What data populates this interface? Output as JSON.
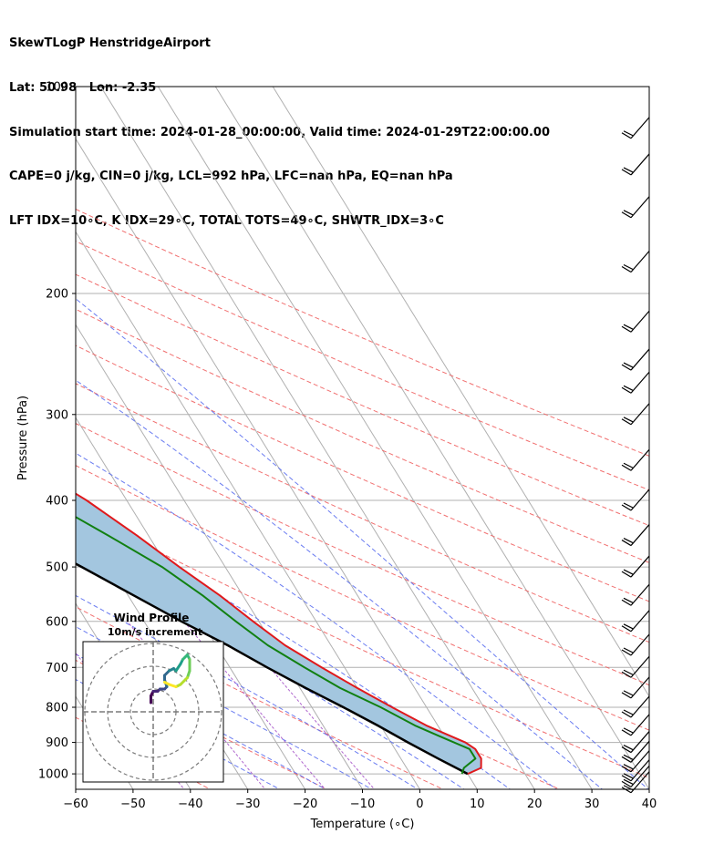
{
  "header": {
    "line1": "SkewTLogP HenstridgeAirport",
    "line2": "Lat: 50.98   Lon: -2.35",
    "line3": "Simulation start time: 2024-01-28_00:00:00, Valid time: 2024-01-29T22:00:00.00",
    "line4": "CAPE=0 j/kg, CIN=0 j/kg, LCL=992 hPa, LFC=nan hPa, EQ=nan hPa",
    "line5": "LFT IDX=10∘C, K IDX=29∘C, TOTAL TOTS=49∘C, SHWTR_IDX=3∘C"
  },
  "chart_data": [
    {
      "type": "line",
      "subtype": "skew-T log-P diagram",
      "xlabel": "Temperature (∘C)",
      "ylabel": "Pressure (hPa)",
      "x_ticks": [
        "−60",
        "−50",
        "−40",
        "−30",
        "−20",
        "−10",
        "0",
        "10",
        "20",
        "30",
        "40"
      ],
      "y_ticks": [
        "100",
        "200",
        "300",
        "400",
        "500",
        "600",
        "700",
        "800",
        "900",
        "1000"
      ],
      "xlim": [
        -60,
        40
      ],
      "ylim_hpa": [
        1050,
        100
      ],
      "y_scale": "log",
      "grid": true,
      "series": [
        {
          "role": "temperature",
          "color": "#e0191c",
          "p": [
            1000,
            980,
            950,
            920,
            900,
            880,
            850,
            800,
            750,
            700,
            650,
            600,
            550,
            500,
            450,
            400,
            350,
            300,
            270,
            250,
            230,
            220,
            210,
            200,
            190,
            180,
            170,
            160,
            150,
            140,
            130,
            120,
            110,
            100
          ],
          "t": [
            10,
            13,
            14,
            14,
            13,
            11,
            8,
            4,
            0,
            -4,
            -8,
            -11,
            -14,
            -18,
            -22,
            -27,
            -34,
            -42,
            -46,
            -51,
            -54,
            -57,
            -57,
            -56,
            -55,
            -53,
            -51,
            -52,
            -53,
            -55,
            -57,
            -59,
            -60,
            -62
          ]
        },
        {
          "role": "dewpoint",
          "color": "#118011",
          "p": [
            1000,
            980,
            950,
            920,
            900,
            880,
            850,
            800,
            750,
            700,
            650,
            600,
            550,
            500,
            450,
            400,
            370,
            350,
            330,
            300,
            280,
            260,
            240,
            220,
            210,
            200,
            190,
            180,
            170,
            160,
            150,
            140,
            130,
            120,
            110,
            100
          ],
          "t": [
            9,
            10,
            13,
            13,
            11,
            9,
            6,
            2,
            -3,
            -7,
            -11,
            -14,
            -17,
            -21,
            -27,
            -34,
            -39,
            -42,
            -44,
            -48,
            -52,
            -56,
            -59,
            -62,
            -65,
            -66,
            -65,
            -65,
            -70,
            -74,
            -76,
            -74,
            -72,
            -70,
            -69,
            -70
          ]
        },
        {
          "role": "parcel path",
          "color": "#000000",
          "p": [
            1000,
            950,
            900,
            850,
            800,
            750,
            700,
            650,
            600,
            550,
            500,
            450,
            400,
            350,
            300,
            250,
            200,
            150,
            100
          ],
          "t": [
            10,
            6.5,
            3,
            -0.5,
            -4.5,
            -9,
            -13.5,
            -18,
            -23.5,
            -29,
            -35,
            -42,
            -50,
            -58,
            -67,
            -77,
            -87,
            -100,
            -117
          ]
        }
      ],
      "shading": "area between parcel path and temperature profile",
      "shade_color": "#a3c6df",
      "wind_barbs_hpa": [
        1030,
        1010,
        990,
        960,
        930,
        900,
        850,
        800,
        750,
        700,
        650,
        600,
        550,
        500,
        450,
        400,
        350,
        300,
        270,
        250,
        220,
        180,
        150,
        130,
        115
      ]
    },
    {
      "type": "line",
      "subtype": "hodograph",
      "title": "Wind Profile",
      "subtitle": "10m/s increment",
      "rings_ms": [
        10,
        20,
        30
      ],
      "u_ms": [
        -1,
        -1,
        -0.5,
        0,
        2,
        3,
        5,
        6,
        5,
        5,
        7,
        9,
        10,
        12,
        13,
        14,
        15,
        16,
        16,
        15,
        12,
        10,
        7,
        5
      ],
      "v_ms": [
        4,
        7,
        8,
        9,
        9,
        10,
        10,
        11,
        14,
        16,
        18,
        19,
        18,
        21,
        23,
        24,
        25,
        23,
        18,
        15,
        12,
        11,
        12,
        13
      ],
      "colormap": "viridis"
    }
  ]
}
